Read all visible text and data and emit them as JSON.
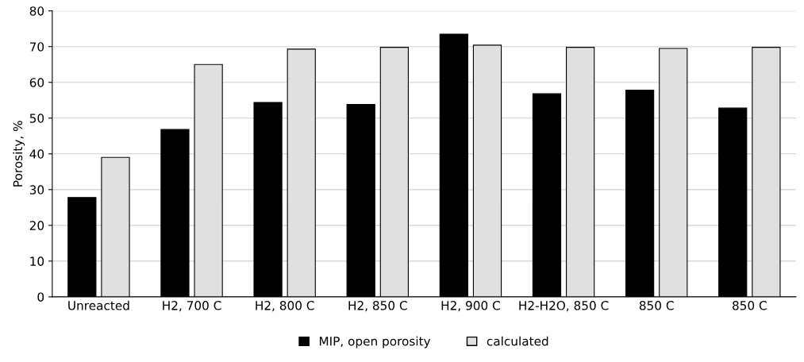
{
  "chart_data": {
    "type": "bar",
    "ylabel": "Porosity, %",
    "categories": [
      "Unreacted",
      "H2, 700 C",
      "H2, 800 C",
      "H2, 850 C",
      "H2, 900 C",
      "H2-H2O, 850 C",
      "850 C",
      "850 C"
    ],
    "series": [
      {
        "name": "MIP, open porosity",
        "color": "#000000",
        "values": [
          27.8,
          46.8,
          54.4,
          53.8,
          73.5,
          56.8,
          57.8,
          52.8
        ]
      },
      {
        "name": "calculated",
        "color": "#e0e0e0",
        "values": [
          39.0,
          65.0,
          69.3,
          69.8,
          70.4,
          69.8,
          69.5,
          69.8
        ]
      }
    ],
    "ylim": [
      0,
      80
    ],
    "yticks": [
      0,
      10,
      20,
      30,
      40,
      50,
      60,
      70,
      80
    ],
    "grid": "y",
    "legend": "bottom"
  }
}
